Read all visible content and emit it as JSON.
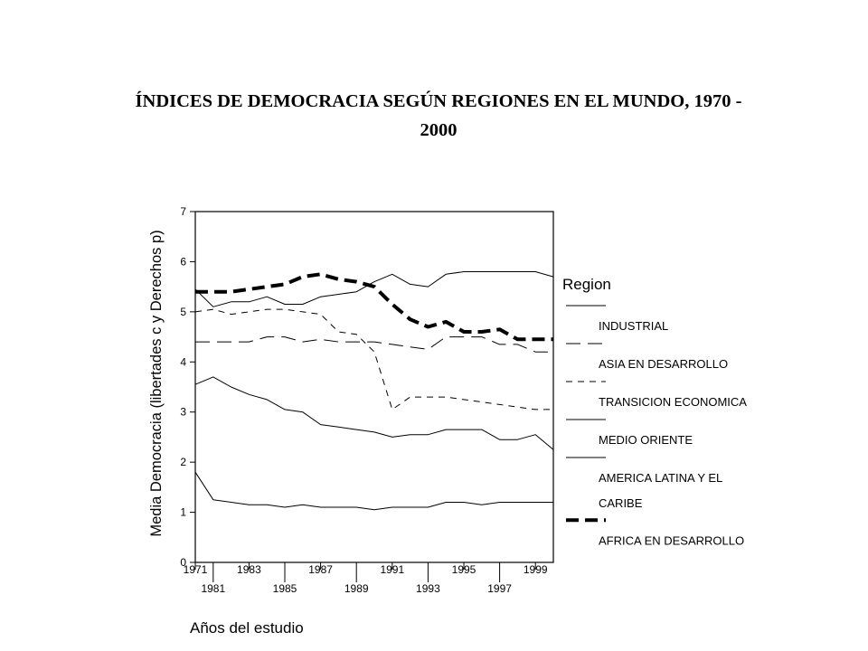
{
  "title_line1": "ÍNDICES DE DEMOCRACIA SEGÚN REGIONES EN EL MUNDO, 1970 -",
  "title_line2": "2000",
  "chart_data": {
    "type": "line",
    "title": "ÍNDICES DE DEMOCRACIA SEGÚN REGIONES EN EL MUNDO, 1970 - 2000",
    "xlabel": "Años del estudio",
    "ylabel": "Media Democracia (libertades c y Derechos p)",
    "xlim": [
      1971,
      2000
    ],
    "ylim": [
      0,
      7
    ],
    "y_ticks": [
      0,
      1,
      2,
      3,
      4,
      5,
      6,
      7
    ],
    "x_ticks_row1": [
      "1971",
      "1983",
      "1987",
      "1991",
      "1995",
      "1999"
    ],
    "x_ticks_row2": [
      "1981",
      "1985",
      "1989",
      "1993",
      "1997"
    ],
    "x_tick_years_row1": [
      1971,
      1983,
      1987,
      1991,
      1995,
      1999
    ],
    "x_tick_years_row2": [
      1981,
      1985,
      1989,
      1993,
      1997
    ],
    "legend_title": "Region",
    "legend_position": "right",
    "x": [
      1971,
      1981,
      1982,
      1983,
      1984,
      1985,
      1986,
      1987,
      1988,
      1989,
      1990,
      1991,
      1992,
      1993,
      1994,
      1995,
      1996,
      1997,
      1998,
      1999,
      2000
    ],
    "series": [
      {
        "name": "INDUSTRIAL",
        "label_lines": [
          "INDUSTRIAL"
        ],
        "style": "solid",
        "values": [
          5.45,
          5.1,
          5.2,
          5.2,
          5.3,
          5.15,
          5.15,
          5.3,
          5.35,
          5.4,
          5.6,
          5.75,
          5.55,
          5.5,
          5.75,
          5.8,
          5.8,
          5.8,
          5.8,
          5.8,
          5.7
        ]
      },
      {
        "name": "ASIA EN DESARROLLO",
        "label_lines": [
          "ASIA EN DESARROLLO"
        ],
        "style": "longdash",
        "values": [
          4.4,
          4.4,
          4.4,
          4.4,
          4.5,
          4.5,
          4.4,
          4.45,
          4.4,
          4.4,
          4.4,
          4.35,
          4.3,
          4.25,
          4.5,
          4.5,
          4.5,
          4.35,
          4.35,
          4.2,
          4.2
        ]
      },
      {
        "name": "TRANSICION ECONOMICA",
        "label_lines": [
          "TRANSICION ECONOMICA"
        ],
        "style": "shortdash",
        "values": [
          5.0,
          5.05,
          4.95,
          5.0,
          5.05,
          5.05,
          5.0,
          4.95,
          4.6,
          4.55,
          4.2,
          3.05,
          3.3,
          3.3,
          3.3,
          3.25,
          3.2,
          3.15,
          3.1,
          3.05,
          3.05
        ]
      },
      {
        "name": "MEDIO ORIENTE",
        "label_lines": [
          "MEDIO ORIENTE"
        ],
        "style": "thin",
        "values": [
          3.55,
          3.7,
          3.5,
          3.35,
          3.25,
          3.05,
          3.0,
          2.75,
          2.7,
          2.65,
          2.6,
          2.5,
          2.55,
          2.55,
          2.65,
          2.65,
          2.65,
          2.45,
          2.45,
          2.55,
          2.25
        ]
      },
      {
        "name": "AMERICA LATINA Y EL CARIBE",
        "label_lines": [
          "AMERICA LATINA Y EL",
          "CARIBE"
        ],
        "style": "thin",
        "values": [
          1.8,
          1.25,
          1.2,
          1.15,
          1.15,
          1.1,
          1.15,
          1.1,
          1.1,
          1.1,
          1.05,
          1.1,
          1.1,
          1.1,
          1.2,
          1.2,
          1.15,
          1.2,
          1.2,
          1.2,
          1.2
        ]
      },
      {
        "name": "AFRICA EN DESARROLLO",
        "label_lines": [
          "AFRICA EN DESARROLLO"
        ],
        "style": "heavydash",
        "values": [
          5.4,
          5.4,
          5.4,
          5.45,
          5.5,
          5.55,
          5.7,
          5.75,
          5.65,
          5.6,
          5.5,
          5.15,
          4.85,
          4.7,
          4.8,
          4.6,
          4.6,
          4.65,
          4.45,
          4.45,
          4.45
        ]
      }
    ]
  }
}
